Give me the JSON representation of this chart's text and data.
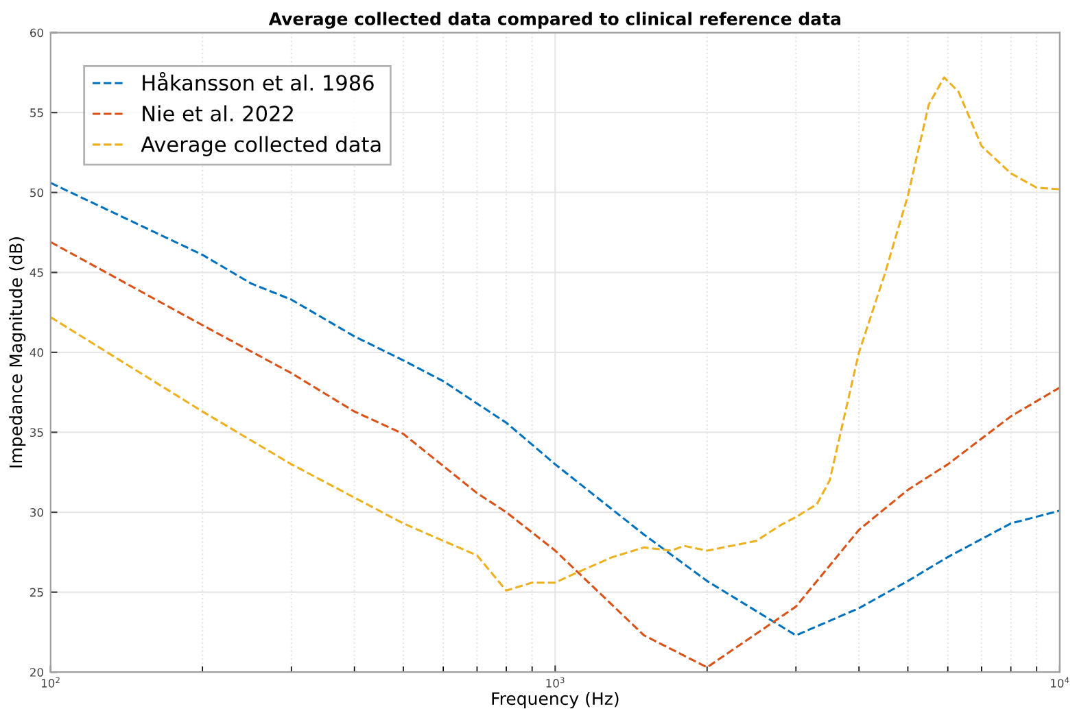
{
  "chart_data": {
    "type": "line",
    "title": "Average collected data compared to clinical reference data",
    "xlabel": "Frequency (Hz)",
    "ylabel": "Impedance Magnitude (dB)",
    "log": "x",
    "xlim": [
      100,
      10000
    ],
    "xticks": [
      {
        "value": 100,
        "label": "10$^{2}$"
      },
      {
        "value": 1000,
        "label": "10$^{3}$"
      },
      {
        "value": 10000,
        "label": "10$^{4}$"
      }
    ],
    "ylim": [
      20,
      60
    ],
    "yticks": [
      20,
      25,
      30,
      35,
      40,
      45,
      50,
      55,
      60
    ],
    "grid": true,
    "legend": "top left",
    "line_style": "dashed",
    "marker": "none",
    "series": [
      {
        "name": "Håkansson et al. 1986",
        "color": "#0072bd",
        "x": [
          100,
          200,
          250,
          300,
          400,
          500,
          600,
          700,
          800,
          1000,
          1500,
          2000,
          3000,
          4000,
          5000,
          6000,
          8000,
          10000
        ],
        "values": [
          50.6,
          46.1,
          44.3,
          43.3,
          41,
          39.5,
          38.2,
          36.8,
          35.6,
          33,
          28.6,
          25.7,
          22.3,
          24,
          25.7,
          27.2,
          29.3,
          30.1
        ]
      },
      {
        "name": "Nie et al. 2022",
        "color": "#d95319",
        "x": [
          100,
          200,
          300,
          400,
          500,
          700,
          800,
          1000,
          1500,
          2000,
          3000,
          4000,
          5000,
          6000,
          8000,
          10000
        ],
        "values": [
          46.9,
          41.7,
          38.7,
          36.3,
          34.9,
          31.2,
          30,
          27.6,
          22.3,
          20.3,
          24.1,
          28.9,
          31.4,
          33,
          36,
          37.8
        ]
      },
      {
        "name": "Average collected data",
        "color": "#edb120",
        "x": [
          100,
          200,
          300,
          500,
          700,
          800,
          900,
          1000,
          1100,
          1300,
          1500,
          1700,
          1800,
          2000,
          2500,
          2800,
          3000,
          3300,
          3500,
          4000,
          4500,
          5000,
          5500,
          5900,
          6300,
          7000,
          8000,
          9000,
          10000
        ],
        "values": [
          42.2,
          36.3,
          33,
          29.3,
          27.3,
          25.1,
          25.6,
          25.6,
          26.2,
          27.2,
          27.8,
          27.6,
          27.9,
          27.6,
          28.2,
          29.2,
          29.7,
          30.5,
          32,
          40,
          44.9,
          49.8,
          55.5,
          57.2,
          56.3,
          52.9,
          51.2,
          50.3,
          50.2
        ]
      }
    ]
  }
}
